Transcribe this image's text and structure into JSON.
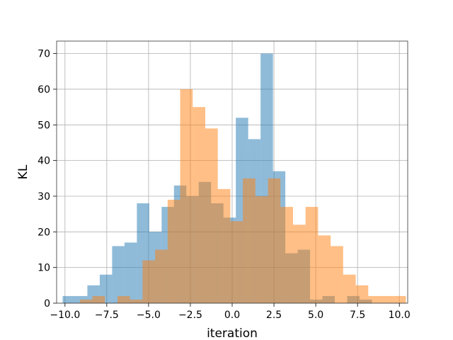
{
  "chart_data": {
    "type": "bar",
    "subtype": "overlapping-histogram",
    "title": "",
    "xlabel": "iteration",
    "ylabel": "KL",
    "xlim": [
      -10.5,
      10.5
    ],
    "ylim": [
      0,
      73.5
    ],
    "xticks": [
      -10,
      -7.5,
      -5,
      -2.5,
      0,
      2.5,
      5,
      7.5,
      10
    ],
    "xtick_labels": [
      "−10.0",
      "−7.5",
      "−5.0",
      "−2.5",
      "0.0",
      "2.5",
      "5.0",
      "7.5",
      "10.0"
    ],
    "yticks": [
      0,
      10,
      20,
      30,
      40,
      50,
      60,
      70
    ],
    "ytick_labels": [
      "0",
      "10",
      "20",
      "30",
      "40",
      "50",
      "60",
      "70"
    ],
    "grid": true,
    "legend": "none",
    "series": [
      {
        "color": "#1f77b4",
        "opacity": 0.5,
        "bin_edges": [
          -10.14,
          -9.4,
          -8.66,
          -7.92,
          -7.18,
          -6.44,
          -5.7,
          -4.96,
          -4.22,
          -3.48,
          -2.74,
          -2.0,
          -1.26,
          -0.52,
          0.22,
          0.96,
          1.7,
          2.44,
          3.18,
          3.92,
          4.66,
          5.4,
          6.14,
          6.88,
          7.62,
          8.36
        ],
        "counts": [
          2,
          2,
          5,
          8,
          16,
          17,
          28,
          20,
          27,
          33,
          30,
          34,
          28,
          24,
          52,
          46,
          70,
          37,
          14,
          15,
          1,
          2,
          0,
          2,
          1
        ]
      },
      {
        "color": "#ff7f0e",
        "opacity": 0.5,
        "bin_edges": [
          -9.11,
          -8.36,
          -7.61,
          -6.86,
          -6.11,
          -5.36,
          -4.61,
          -3.86,
          -3.11,
          -2.36,
          -1.61,
          -0.86,
          -0.11,
          0.64,
          1.39,
          2.14,
          2.89,
          3.64,
          4.39,
          5.14,
          5.89,
          6.64,
          7.39,
          8.14,
          8.89,
          9.64,
          10.39
        ],
        "counts": [
          1,
          2,
          0,
          2,
          1,
          12,
          15,
          29,
          60,
          55,
          49,
          32,
          23,
          35,
          30,
          35,
          27,
          22,
          27,
          19,
          16,
          8,
          5,
          2,
          2,
          2
        ]
      }
    ]
  }
}
